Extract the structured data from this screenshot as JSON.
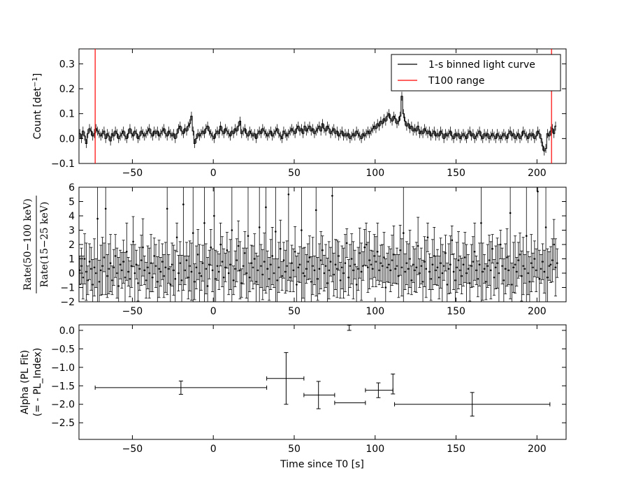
{
  "chart_data": [
    {
      "type": "line",
      "panel": "light-curve",
      "xlim": [
        -83,
        218
      ],
      "ylim": [
        -0.1,
        0.36
      ],
      "xticks": [
        -50,
        0,
        50,
        100,
        150,
        200
      ],
      "x_tick_labels": [
        "−50",
        "0",
        "50",
        "100",
        "150",
        "200"
      ],
      "yticks": [
        -0.1,
        0.0,
        0.1,
        0.2,
        0.3
      ],
      "y_tick_labels": [
        "−0.1",
        "0.0",
        "0.1",
        "0.2",
        "0.3"
      ],
      "ylabel_main": "Count [det",
      "ylabel_sup": "−1",
      "ylabel_end": "]",
      "legend_position": "top-right",
      "legend": [
        {
          "label": "1-s binned light curve",
          "color": "#000000"
        },
        {
          "label": "T100 range",
          "color": "#ff0000"
        }
      ],
      "t100_range": [
        -73,
        209
      ],
      "series": [
        {
          "kind": "errorbar-binned",
          "x_start": -83,
          "x_step": 1,
          "y_error": 0.018,
          "values": [
            0.02,
            0.0,
            0.03,
            0.01,
            -0.02,
            0.02,
            0.04,
            0.03,
            0.01,
            0.02,
            0.04,
            0.03,
            0.02,
            0.01,
            0.02,
            0.03,
            0.0,
            0.02,
            0.01,
            -0.01,
            0.02,
            0.01,
            0.03,
            0.02,
            0.0,
            0.01,
            0.02,
            0.03,
            0.01,
            0.0,
            0.02,
            0.04,
            0.02,
            0.01,
            0.03,
            0.02,
            0.0,
            0.01,
            0.03,
            0.02,
            0.01,
            0.02,
            0.03,
            0.04,
            0.02,
            0.01,
            0.03,
            0.02,
            0.03,
            0.01,
            0.02,
            0.03,
            0.04,
            0.02,
            0.01,
            0.03,
            0.02,
            0.01,
            0.02,
            0.0,
            0.02,
            0.04,
            0.05,
            0.03,
            0.02,
            0.04,
            0.03,
            0.05,
            0.06,
            0.09,
            0.03,
            -0.02,
            0.0,
            0.02,
            0.01,
            0.02,
            0.03,
            0.02,
            0.04,
            0.05,
            0.03,
            0.02,
            0.01,
            0.0,
            0.02,
            0.03,
            0.02,
            0.05,
            0.03,
            0.02,
            0.04,
            0.03,
            0.02,
            0.01,
            0.03,
            0.02,
            0.04,
            0.03,
            0.05,
            0.07,
            0.02,
            0.03,
            0.04,
            0.02,
            0.01,
            0.03,
            0.02,
            0.01,
            0.02,
            0.0,
            0.02,
            0.03,
            0.02,
            0.04,
            0.03,
            0.02,
            0.01,
            0.02,
            0.03,
            0.01,
            0.02,
            0.03,
            0.04,
            0.02,
            0.01,
            0.0,
            0.03,
            0.02,
            0.01,
            0.02,
            0.03,
            0.04,
            0.03,
            0.02,
            0.04,
            0.05,
            0.03,
            0.04,
            0.02,
            0.05,
            0.03,
            0.04,
            0.05,
            0.03,
            0.04,
            0.02,
            0.03,
            0.04,
            0.05,
            0.03,
            0.06,
            0.04,
            0.03,
            0.05,
            0.04,
            0.02,
            0.03,
            0.04,
            0.02,
            0.03,
            0.01,
            0.02,
            0.03,
            0.01,
            0.02,
            0.01,
            0.02,
            0.0,
            0.01,
            0.02,
            0.01,
            0.03,
            0.02,
            0.01,
            0.0,
            0.02,
            0.01,
            0.02,
            0.03,
            0.02,
            0.03,
            0.04,
            0.05,
            0.04,
            0.06,
            0.05,
            0.07,
            0.06,
            0.08,
            0.07,
            0.09,
            0.1,
            0.08,
            0.07,
            0.09,
            0.08,
            0.06,
            0.07,
            0.09,
            0.17,
            0.1,
            0.07,
            0.05,
            0.06,
            0.04,
            0.05,
            0.03,
            0.04,
            0.03,
            0.05,
            0.02,
            0.03,
            0.02,
            0.04,
            0.03,
            0.02,
            0.03,
            0.01,
            0.02,
            0.03,
            0.01,
            0.02,
            0.01,
            0.03,
            0.02,
            0.0,
            0.02,
            0.01,
            0.02,
            0.03,
            0.01,
            0.0,
            0.02,
            0.01,
            0.02,
            0.0,
            0.01,
            0.02,
            0.01,
            0.0,
            0.02,
            0.03,
            0.01,
            0.02,
            0.0,
            0.01,
            0.02,
            0.03,
            0.01,
            0.0,
            0.02,
            0.01,
            0.02,
            0.0,
            0.01,
            0.02,
            0.01,
            0.0,
            0.02,
            0.01,
            0.0,
            0.01,
            0.02,
            0.01,
            0.0,
            0.02,
            0.03,
            0.01,
            0.02,
            0.0,
            0.01,
            0.02,
            0.0,
            0.01,
            0.03,
            0.02,
            0.01,
            0.0,
            0.02,
            0.01,
            0.02,
            0.0,
            0.01,
            0.03,
            0.02,
            0.0,
            -0.03,
            -0.05,
            -0.04,
            0.02,
            0.01,
            0.03,
            0.04,
            0.02,
            0.05
          ]
        }
      ]
    },
    {
      "type": "line",
      "panel": "hardness-ratio",
      "xlim": [
        -83,
        218
      ],
      "ylim": [
        -2,
        6
      ],
      "xticks": [
        -50,
        0,
        50,
        100,
        150,
        200
      ],
      "x_tick_labels": [
        "−50",
        "0",
        "50",
        "100",
        "150",
        "200"
      ],
      "yticks": [
        -2,
        -1,
        0,
        1,
        2,
        3,
        4,
        5,
        6
      ],
      "y_tick_labels": [
        "−2",
        "−1",
        "0",
        "1",
        "2",
        "3",
        "4",
        "5",
        "6"
      ],
      "ylabel_numerator": "Rate(50−100 keV)",
      "ylabel_denominator": "Rate(15−25 keV)",
      "series": [
        {
          "kind": "errorbar-binned",
          "x_start": -83,
          "x_step": 1,
          "values": [
            0.2,
            0.5,
            -0.3,
            1.0,
            0.1,
            -0.5,
            0.8,
            0.3,
            -0.8,
            0.4,
            0.0,
            3.8,
            -0.6,
            0.2,
            0.5,
            1.1,
            4.5,
            -0.2,
            0.3,
            0.7,
            -0.5,
            0.4,
            1.2,
            0.0,
            -0.9,
            0.6,
            0.2,
            0.8,
            -0.3,
            1.5,
            0.1,
            -0.4,
            0.5,
            2.2,
            0.0,
            0.6,
            -0.7,
            0.3,
            0.9,
            1.8,
            0.2,
            -0.5,
            0.4,
            0.0,
            0.7,
            -0.3,
            1.2,
            0.5,
            -0.6,
            0.3,
            0.1,
            0.8,
            -0.2,
            0.4,
            4.5,
            0.3,
            -0.8,
            0.6,
            0.2,
            -0.4,
            2.5,
            0.0,
            0.7,
            -0.5,
            4.8,
            0.2,
            0.9,
            -0.3,
            0.5,
            0.1,
            2.8,
            -0.6,
            0.4,
            1.3,
            0.0,
            -0.2,
            0.7,
            3.5,
            0.3,
            -0.9,
            0.6,
            1.8,
            0.2,
            4.0,
            -0.4,
            0.5,
            0.1,
            2.0,
            0.8,
            -0.3,
            0.4,
            1.6,
            0.0,
            0.6,
            3.0,
            -0.5,
            0.3,
            0.9,
            1.9,
            0.2,
            -0.7,
            0.5,
            1.4,
            0.0,
            2.6,
            -0.3,
            0.7,
            0.4,
            1.0,
            -0.6,
            0.2,
            3.2,
            0.5,
            -0.1,
            0.8,
            4.6,
            0.3,
            -0.4,
            0.6,
            1.2,
            0.0,
            2.9,
            -0.5,
            0.4,
            1.7,
            -0.2,
            0.9,
            0.1,
            0.5,
            5.5,
            -0.3,
            0.7,
            0.2,
            1.5,
            -0.8,
            0.4,
            0.6,
            3.0,
            0.0,
            -0.2,
            0.3,
            0.8,
            1.1,
            -0.6,
            0.5,
            0.2,
            4.4,
            -0.4,
            0.3,
            0.9,
            1.6,
            0.0,
            0.5,
            -0.7,
            0.2,
            0.8,
            5.4,
            -0.1,
            0.6,
            0.3,
            1.2,
            -0.5,
            0.4,
            0.0,
            0.7,
            2.1,
            -0.3,
            0.5,
            1.0,
            0.2,
            0.6,
            -0.8,
            0.3,
            1.4,
            0.1,
            0.5,
            1.8,
            2.0,
            0.4,
            0.9,
            0.6,
            0.3,
            1.2,
            0.8,
            1.5,
            0.2,
            0.7,
            0.5,
            1.1,
            -1.0,
            0.4,
            0.6,
            0.2,
            0.9,
            1.3,
            0.3,
            0.5,
            -0.2,
            1.6,
            0.4,
            2.8,
            0.1,
            0.7,
            0.3,
            1.0,
            -0.5,
            0.6,
            0.2,
            0.4,
            1.9,
            0.0,
            0.5,
            -0.6,
            0.8,
            0.3,
            2.5,
            0.1,
            -0.4,
            0.6,
            1.2,
            0.2,
            0.4,
            -0.3,
            0.7,
            0.0,
            0.5,
            1.4,
            -0.8,
            0.3,
            0.6,
            2.3,
            0.1,
            -0.5,
            0.4,
            0.9,
            0.2,
            -0.2,
            0.6,
            1.1,
            0.0,
            0.3,
            -0.7,
            0.5,
            0.8,
            1.5,
            0.2,
            -0.4,
            0.6,
            3.5,
            0.1,
            0.3,
            -0.6,
            0.5,
            0.9,
            0.2,
            1.7,
            -0.3,
            0.4,
            0.7,
            0.0,
            2.0,
            0.5,
            -0.5,
            0.3,
            1.1,
            0.2,
            4.2,
            -0.8,
            0.4,
            0.6,
            0.1,
            0.9,
            1.3,
            -0.2,
            0.5,
            0.3,
            2.6,
            0.0,
            -0.6,
            0.7,
            0.4,
            1.0,
            0.2,
            5.7,
            -0.4,
            0.3,
            0.8,
            0.1,
            3.2,
            -0.3,
            0.5,
            0.6,
            0.9,
            2.0,
            0.4,
            0.7
          ]
        }
      ]
    },
    {
      "type": "scatter",
      "panel": "alpha-pl-fit",
      "xlim": [
        -83,
        218
      ],
      "ylim": [
        -2.95,
        0.15
      ],
      "xticks": [
        -50,
        0,
        50,
        100,
        150,
        200
      ],
      "x_tick_labels": [
        "−50",
        "0",
        "50",
        "100",
        "150",
        "200"
      ],
      "yticks": [
        0.0,
        -0.5,
        -1.0,
        -1.5,
        -2.0,
        -2.5
      ],
      "y_tick_labels": [
        "0.0",
        "−0.5",
        "−1.0",
        "−1.5",
        "−2.0",
        "−2.5"
      ],
      "ylabel_line1": "Alpha (PL Fit)",
      "ylabel_line2": "(= - PL_Index)",
      "xlabel": "Time since T0 [s]",
      "points": [
        {
          "x": -20,
          "y": -1.55,
          "x_lo": -73,
          "x_hi": 33,
          "y_err": 0.18
        },
        {
          "x": 45,
          "y": -1.3,
          "x_lo": 33,
          "x_hi": 56,
          "y_err": 0.7
        },
        {
          "x": 65,
          "y": -1.75,
          "x_lo": 56,
          "x_hi": 75,
          "y_err": 0.37
        },
        {
          "x": 84,
          "y": -1.96,
          "x_lo": 75,
          "x_hi": 94,
          "y_err": 0.0
        },
        {
          "x": 84,
          "y": 0.07,
          "x_lo": 84,
          "x_hi": 84,
          "y_err": 0.07
        },
        {
          "x": 102,
          "y": -1.62,
          "x_lo": 94,
          "x_hi": 111,
          "y_err": 0.2
        },
        {
          "x": 111,
          "y": -1.45,
          "x_lo": 111,
          "x_hi": 111,
          "y_err": 0.27
        },
        {
          "x": 160,
          "y": -2.0,
          "x_lo": 112,
          "x_hi": 208,
          "y_err": 0.32
        }
      ]
    }
  ]
}
